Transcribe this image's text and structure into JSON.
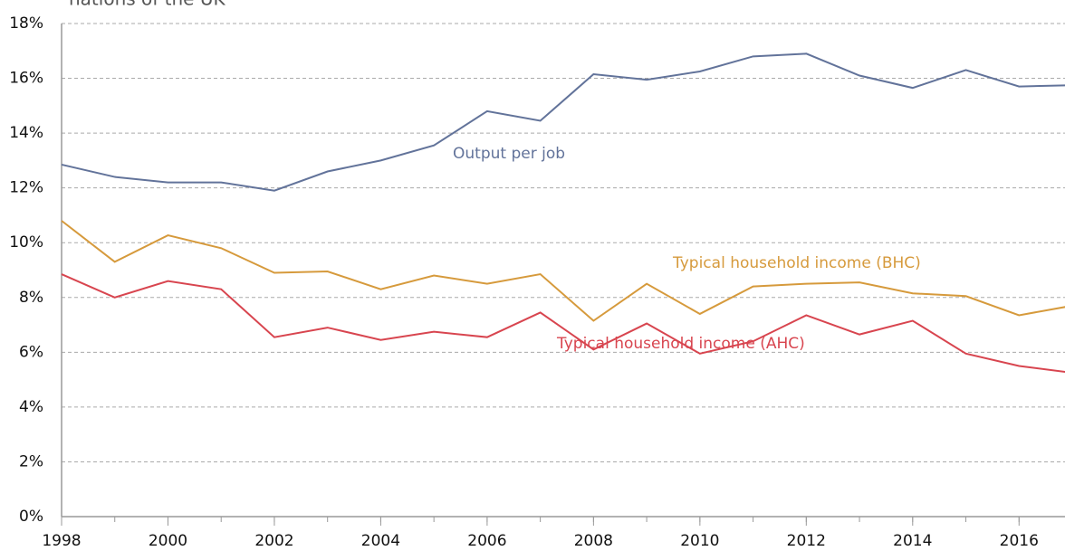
{
  "chart_data": {
    "type": "line",
    "subtitle": "nations of the UK",
    "x": [
      1998,
      1999,
      2000,
      2001,
      2002,
      2003,
      2004,
      2005,
      2006,
      2007,
      2008,
      2009,
      2010,
      2011,
      2012,
      2013,
      2014,
      2015,
      2016,
      2017
    ],
    "series": [
      {
        "name": "Output per job",
        "color": "#62739a",
        "values": [
          12.85,
          12.4,
          12.2,
          12.2,
          11.9,
          12.6,
          13.0,
          13.55,
          14.8,
          14.45,
          16.15,
          15.95,
          16.25,
          16.8,
          16.9,
          16.1,
          15.65,
          16.3,
          15.7,
          15.75
        ]
      },
      {
        "name": "Typical household income (BHC)",
        "color": "#d69a3c",
        "values": [
          10.8,
          9.3,
          10.27,
          9.8,
          8.9,
          8.95,
          8.3,
          8.8,
          8.5,
          8.85,
          7.15,
          8.5,
          7.4,
          8.4,
          8.5,
          8.55,
          8.15,
          8.05,
          7.35,
          7.7
        ]
      },
      {
        "name": "Typical household income (AHC)",
        "color": "#d8454f",
        "values": [
          8.85,
          8.0,
          8.6,
          8.3,
          6.55,
          6.9,
          6.45,
          6.75,
          6.55,
          7.45,
          6.1,
          7.05,
          5.95,
          6.4,
          7.35,
          6.65,
          7.15,
          5.95,
          5.5,
          5.25
        ]
      }
    ],
    "xlim": [
      1998,
      2017
    ],
    "xticks": [
      1998,
      2000,
      2002,
      2004,
      2006,
      2008,
      2010,
      2012,
      2014,
      2016
    ],
    "ylim": [
      0,
      18
    ],
    "yticks": [
      {
        "value": 0,
        "label": "0%"
      },
      {
        "value": 2,
        "label": "2%"
      },
      {
        "value": 4,
        "label": "4%"
      },
      {
        "value": 6,
        "label": "6%"
      },
      {
        "value": 8,
        "label": "8%"
      },
      {
        "value": 10,
        "label": "10%"
      },
      {
        "value": 12,
        "label": "12%"
      },
      {
        "value": 14,
        "label": "14%"
      },
      {
        "value": 16,
        "label": "16%"
      },
      {
        "value": 18,
        "label": "18%"
      }
    ],
    "grid": true
  }
}
